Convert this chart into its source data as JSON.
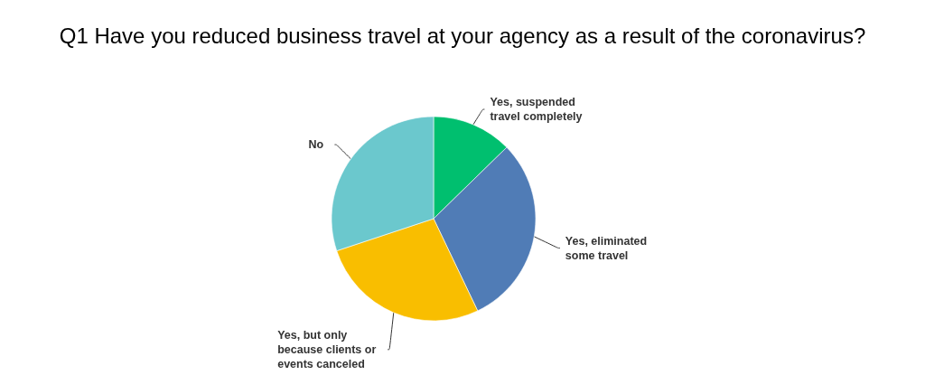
{
  "chart_data": {
    "type": "pie",
    "title": "Q1 Have you reduced business travel at your agency as a result of the coronavirus?",
    "categories": [
      "Yes, suspended travel completely",
      "Yes, eliminated some travel",
      "Yes, but only because clients or events canceled",
      "No"
    ],
    "values": [
      12.7,
      30.2,
      27.0,
      30.1
    ],
    "colors": [
      "#00bf6f",
      "#507cb6",
      "#f9be00",
      "#6bc8cd"
    ]
  }
}
